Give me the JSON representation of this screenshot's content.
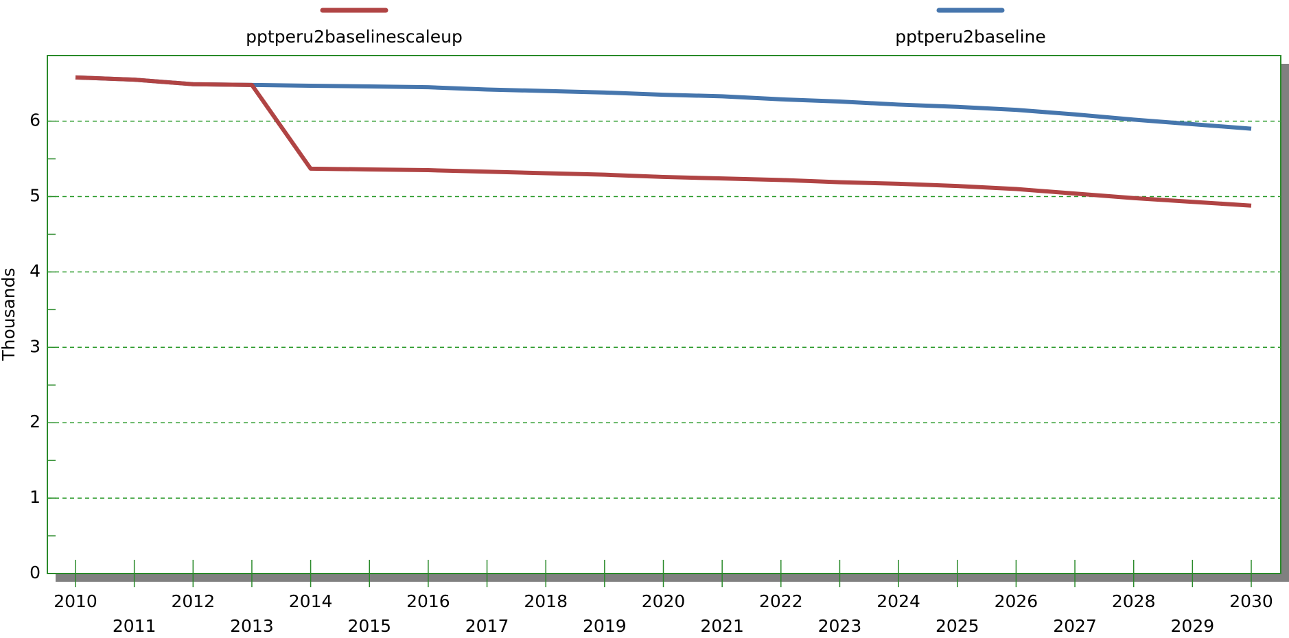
{
  "chart_data": {
    "type": "line",
    "y_label": "Thousands",
    "categories": [
      "2010",
      "2011",
      "2012",
      "2013",
      "2014",
      "2015",
      "2016",
      "2017",
      "2018",
      "2019",
      "2020",
      "2021",
      "2022",
      "2023",
      "2024",
      "2025",
      "2026",
      "2027",
      "2028",
      "2029",
      "2030"
    ],
    "series": [
      {
        "name": "pptperu2baselinescaleup",
        "color": "#b04444",
        "values": [
          6.58,
          6.55,
          6.49,
          6.48,
          5.37,
          5.36,
          5.35,
          5.33,
          5.31,
          5.29,
          5.26,
          5.24,
          5.22,
          5.19,
          5.17,
          5.14,
          5.1,
          5.04,
          4.98,
          4.93,
          4.88
        ]
      },
      {
        "name": "pptperu2baseline",
        "color": "#4676ad",
        "values": [
          6.58,
          6.55,
          6.49,
          6.48,
          6.47,
          6.46,
          6.45,
          6.42,
          6.4,
          6.38,
          6.35,
          6.33,
          6.29,
          6.26,
          6.22,
          6.19,
          6.15,
          6.09,
          6.02,
          5.96,
          5.9
        ]
      }
    ],
    "ylim": [
      0,
      6.87
    ],
    "yticks": [
      0,
      1,
      2,
      3,
      4,
      5,
      6
    ],
    "grid": true,
    "legend": "top"
  }
}
